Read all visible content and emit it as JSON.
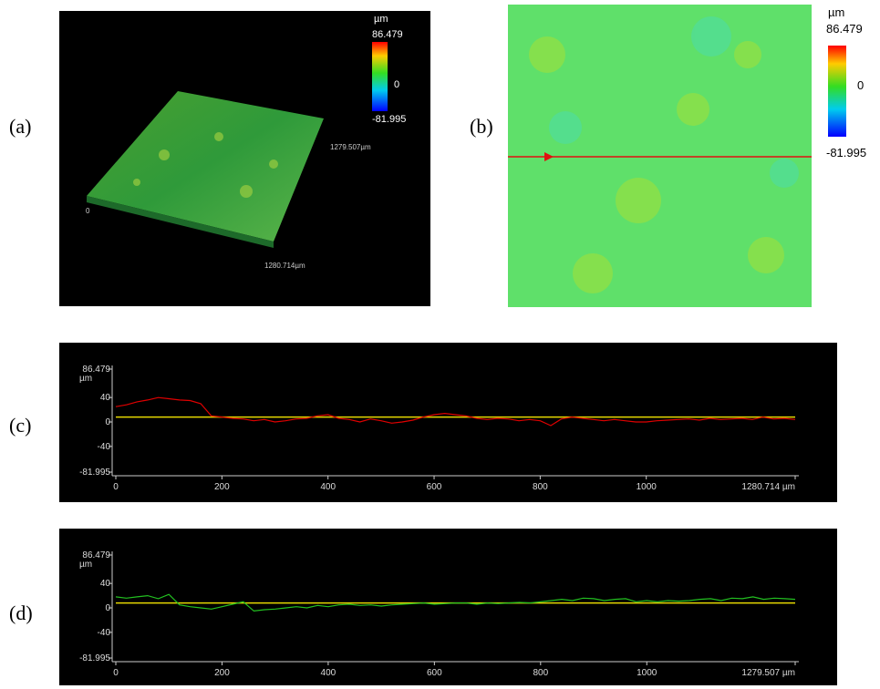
{
  "panel_labels": [
    "(a)",
    "(b)",
    "(c)",
    "(d)"
  ],
  "panel_a": {
    "colorbar": {
      "unit": "µm",
      "max": "86.479",
      "mid": "0",
      "min": "-81.995"
    },
    "axis_labels": [
      "1279.507µm",
      "1280.714µm",
      "0"
    ]
  },
  "panel_b": {
    "colorbar": {
      "unit": "µm",
      "max": "86.479",
      "mid": "0",
      "min": "-81.995"
    }
  },
  "chart_data": [
    {
      "type": "line",
      "x": [
        0,
        20,
        40,
        60,
        80,
        100,
        120,
        140,
        160,
        180,
        200,
        220,
        240,
        260,
        280,
        300,
        320,
        340,
        360,
        380,
        400,
        420,
        440,
        460,
        480,
        500,
        520,
        540,
        560,
        580,
        600,
        620,
        640,
        660,
        680,
        700,
        720,
        740,
        760,
        780,
        800,
        820,
        840,
        860,
        880,
        900,
        920,
        940,
        960,
        980,
        1000,
        1020,
        1040,
        1060,
        1080,
        1100,
        1120,
        1140,
        1160,
        1180,
        1200,
        1220,
        1240,
        1260,
        1280.714
      ],
      "series": [
        {
          "color": "#e00000",
          "values": [
            25,
            28,
            33,
            36,
            40,
            38,
            36,
            35,
            30,
            10,
            8,
            6,
            5,
            2,
            4,
            0,
            2,
            5,
            6,
            10,
            12,
            6,
            4,
            0,
            5,
            2,
            -2,
            0,
            3,
            8,
            12,
            14,
            12,
            10,
            6,
            4,
            6,
            5,
            2,
            4,
            2,
            -6,
            5,
            8,
            6,
            4,
            2,
            4,
            2,
            0,
            0,
            2,
            3,
            4,
            5,
            3,
            6,
            4,
            5,
            6,
            4,
            8,
            5,
            6,
            4
          ]
        }
      ],
      "hline": 8,
      "hline_color": "#e6d800",
      "xlim": [
        0,
        1280.714
      ],
      "xticks": [
        0,
        200,
        400,
        600,
        800,
        1000,
        {
          "value": 1280.714,
          "label": "1280.714 µm"
        }
      ],
      "ylim": [
        -81.995,
        86.479
      ],
      "yticks": [
        -81.995,
        -40,
        0,
        40,
        86.479
      ],
      "y_unit": "µm"
    },
    {
      "type": "line",
      "x": [
        0,
        20,
        40,
        60,
        80,
        100,
        120,
        140,
        160,
        180,
        200,
        220,
        240,
        260,
        280,
        300,
        320,
        340,
        360,
        380,
        400,
        420,
        440,
        460,
        480,
        500,
        520,
        540,
        560,
        580,
        600,
        620,
        640,
        660,
        680,
        700,
        720,
        740,
        760,
        780,
        800,
        820,
        840,
        860,
        880,
        900,
        920,
        940,
        960,
        980,
        1000,
        1020,
        1040,
        1060,
        1080,
        1100,
        1120,
        1140,
        1160,
        1180,
        1200,
        1220,
        1240,
        1260,
        1279.507
      ],
      "series": [
        {
          "color": "#22c020",
          "values": [
            18,
            16,
            18,
            20,
            15,
            22,
            5,
            2,
            0,
            -2,
            2,
            6,
            10,
            -5,
            -3,
            -2,
            0,
            2,
            0,
            4,
            2,
            5,
            6,
            4,
            5,
            3,
            5,
            6,
            7,
            8,
            6,
            7,
            8,
            8,
            6,
            8,
            7,
            8,
            9,
            8,
            10,
            12,
            14,
            12,
            16,
            15,
            12,
            14,
            15,
            10,
            12,
            10,
            12,
            11,
            12,
            14,
            15,
            12,
            16,
            15,
            18,
            14,
            16,
            15,
            14
          ]
        }
      ],
      "hline": 8,
      "hline_color": "#e6d800",
      "xlim": [
        0,
        1279.507
      ],
      "xticks": [
        0,
        200,
        400,
        600,
        800,
        1000,
        {
          "value": 1279.507,
          "label": "1279.507 µm"
        }
      ],
      "ylim": [
        -81.995,
        86.479
      ],
      "yticks": [
        -81.995,
        -40,
        0,
        40,
        86.479
      ],
      "y_unit": "µm"
    }
  ]
}
